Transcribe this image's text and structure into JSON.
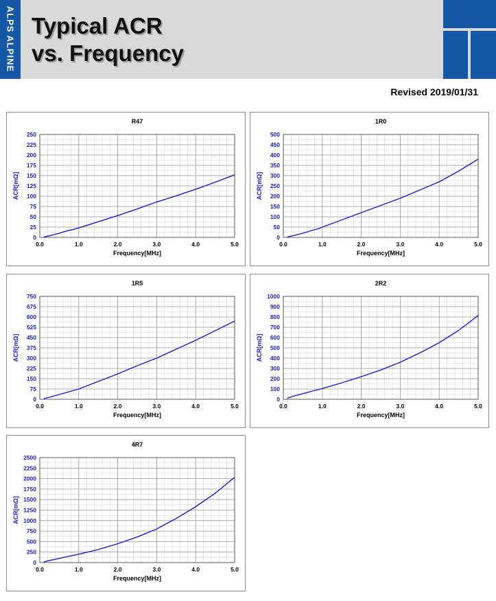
{
  "header": {
    "brand": "ALPS ALPINE",
    "title_line1": "Typical ACR",
    "title_line2": "vs. Frequency",
    "revised": "Revised 2019/01/31"
  },
  "colors": {
    "brand_blue": "#1558a6",
    "header_gray": "#d9d9d9",
    "series_line": "#1a1acc"
  },
  "chart_data": [
    {
      "type": "line",
      "title": "R47",
      "xlabel": "Frequency[MHz]",
      "ylabel": "ACR[mΩ]",
      "xlim": [
        0,
        5
      ],
      "ylim": [
        0,
        250
      ],
      "ystep": 25,
      "xticks": [
        "0.0",
        "1.0",
        "2.0",
        "3.0",
        "4.0",
        "5.0"
      ],
      "yticks": [
        "0",
        "25",
        "50",
        "75",
        "100",
        "125",
        "150",
        "175",
        "200",
        "225",
        "250"
      ],
      "grid": true,
      "series": [
        {
          "x": [
            0.1,
            0.25,
            0.5,
            0.7,
            0.85,
            1.0,
            1.5,
            2.0,
            2.5,
            3.0,
            3.5,
            4.0,
            4.5,
            5.0
          ],
          "y": [
            1,
            4,
            10,
            16,
            19,
            23,
            38,
            53,
            69,
            86,
            101,
            117,
            134,
            152
          ]
        }
      ]
    },
    {
      "type": "line",
      "title": "1R0",
      "xlabel": "Frequency[MHz]",
      "ylabel": "ACR[mΩ]",
      "xlim": [
        0,
        5
      ],
      "ylim": [
        0,
        500
      ],
      "ystep": 50,
      "xticks": [
        "0.0",
        "1.0",
        "2.0",
        "3.0",
        "4.0",
        "5.0"
      ],
      "yticks": [
        "0",
        "50",
        "100",
        "150",
        "200",
        "250",
        "300",
        "350",
        "400",
        "450",
        "500"
      ],
      "grid": true,
      "series": [
        {
          "x": [
            0.1,
            0.25,
            0.5,
            0.75,
            0.9,
            1.0,
            1.5,
            2.0,
            2.5,
            3.0,
            3.5,
            4.0,
            4.5,
            5.0
          ],
          "y": [
            2,
            8,
            20,
            35,
            42,
            50,
            85,
            120,
            155,
            190,
            230,
            270,
            322,
            380
          ]
        }
      ]
    },
    {
      "type": "line",
      "title": "1R5",
      "xlabel": "Frequency[MHz]",
      "ylabel": "ACR[mΩ]",
      "xlim": [
        0,
        5
      ],
      "ylim": [
        0,
        750
      ],
      "ystep": 75,
      "xticks": [
        "0.0",
        "1.0",
        "2.0",
        "3.0",
        "4.0",
        "5.0"
      ],
      "yticks": [
        "0",
        "75",
        "150",
        "225",
        "300",
        "375",
        "450",
        "525",
        "600",
        "675",
        "750"
      ],
      "grid": true,
      "series": [
        {
          "x": [
            0.1,
            0.25,
            0.5,
            0.75,
            1.0,
            1.5,
            2.0,
            2.5,
            3.0,
            3.5,
            4.0,
            4.5,
            5.0
          ],
          "y": [
            5,
            15,
            35,
            55,
            75,
            130,
            185,
            245,
            300,
            365,
            430,
            500,
            570
          ]
        }
      ]
    },
    {
      "type": "line",
      "title": "2R2",
      "xlabel": "Frequency[MHz]",
      "ylabel": "ACR[mΩ]",
      "xlim": [
        0,
        5
      ],
      "ylim": [
        0,
        1000
      ],
      "ystep": 100,
      "xticks": [
        "0.0",
        "1.0",
        "2.0",
        "3.0",
        "4.0",
        "5.0"
      ],
      "yticks": [
        "0",
        "100",
        "200",
        "300",
        "400",
        "500",
        "600",
        "700",
        "800",
        "900",
        "1000"
      ],
      "grid": true,
      "series": [
        {
          "x": [
            0.1,
            0.25,
            0.5,
            0.75,
            1.0,
            1.5,
            2.0,
            2.5,
            3.0,
            3.5,
            4.0,
            4.5,
            5.0
          ],
          "y": [
            10,
            30,
            55,
            80,
            105,
            160,
            220,
            285,
            360,
            450,
            550,
            670,
            815
          ]
        }
      ]
    },
    {
      "type": "line",
      "title": "4R7",
      "xlabel": "Frequency[MHz]",
      "ylabel": "ACR[mΩ]",
      "xlim": [
        0,
        5
      ],
      "ylim": [
        0,
        2500
      ],
      "ystep": 250,
      "xticks": [
        "0.0",
        "1.0",
        "2.0",
        "3.0",
        "4.0",
        "5.0"
      ],
      "yticks": [
        "0",
        "250",
        "500",
        "750",
        "1000",
        "1250",
        "1500",
        "1750",
        "2000",
        "2250",
        "2500"
      ],
      "grid": true,
      "series": [
        {
          "x": [
            0.1,
            0.25,
            0.5,
            0.75,
            1.0,
            1.5,
            2.0,
            2.5,
            3.0,
            3.5,
            4.0,
            4.5,
            5.0
          ],
          "y": [
            15,
            50,
            100,
            150,
            200,
            310,
            450,
            610,
            800,
            1050,
            1330,
            1650,
            2030
          ]
        }
      ]
    }
  ]
}
